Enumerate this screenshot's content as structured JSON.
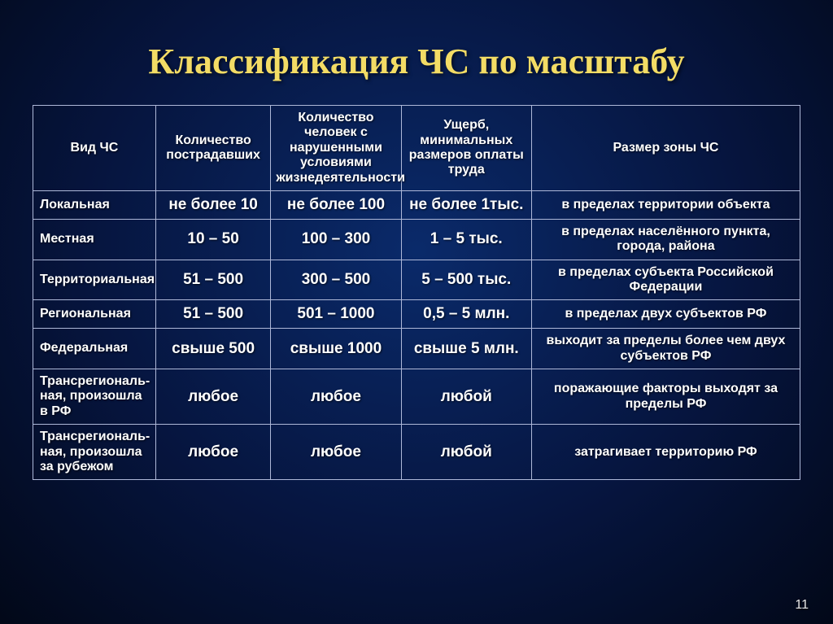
{
  "slide": {
    "title": "Классификация ЧС по масштабу",
    "page_number": "11",
    "background_gradient": {
      "inner": "#0a2a6a",
      "mid": "#06153f",
      "outer": "#020818"
    },
    "title_color": "#f3dc65",
    "text_color": "#ffffff",
    "border_color": "#aeb8d8"
  },
  "table": {
    "type": "table",
    "column_widths_pct": [
      16,
      15,
      17,
      17,
      35
    ],
    "header_fontsize": 16,
    "cell_fontsize_label": 16,
    "cell_fontsize_value": 19,
    "cell_fontsize_zone": 16,
    "columns": [
      "Вид ЧС",
      "Количество пострадавших",
      "Количество человек с нарушенными условиями жизнедеятельности",
      "Ущерб, минимальных размеров оплаты труда",
      "Размер зоны ЧС"
    ],
    "rows": [
      {
        "label": "Локальная",
        "victims": "не более 10",
        "disrupted": "не более 100",
        "damage": "не более 1тыс.",
        "zone": "в пределах территории объекта"
      },
      {
        "label": "Местная",
        "victims": "10 – 50",
        "disrupted": "100 – 300",
        "damage": "1 – 5 тыс.",
        "zone": "в пределах населённого пункта, города, района"
      },
      {
        "label": "Территориальная",
        "victims": "51 – 500",
        "disrupted": "300 – 500",
        "damage": "5 – 500 тыс.",
        "zone": "в пределах субъекта Российской Федерации"
      },
      {
        "label": "Региональная",
        "victims": "51 – 500",
        "disrupted": "501 – 1000",
        "damage": "0,5 – 5 млн.",
        "zone": "в пределах двух субъектов РФ"
      },
      {
        "label": "Федеральная",
        "victims": "свыше 500",
        "disrupted": "свыше 1000",
        "damage": "свыше 5 млн.",
        "zone": "выходит за пределы более чем двух субъектов РФ"
      },
      {
        "label": "Трансрегиональ-ная, произошла в РФ",
        "victims": "любое",
        "disrupted": "любое",
        "damage": "любой",
        "zone": "поражающие факторы выходят за пределы РФ"
      },
      {
        "label": "Трансрегиональ-ная, произошла за рубежом",
        "victims": "любое",
        "disrupted": "любое",
        "damage": "любой",
        "zone": "затрагивает территорию РФ"
      }
    ]
  }
}
